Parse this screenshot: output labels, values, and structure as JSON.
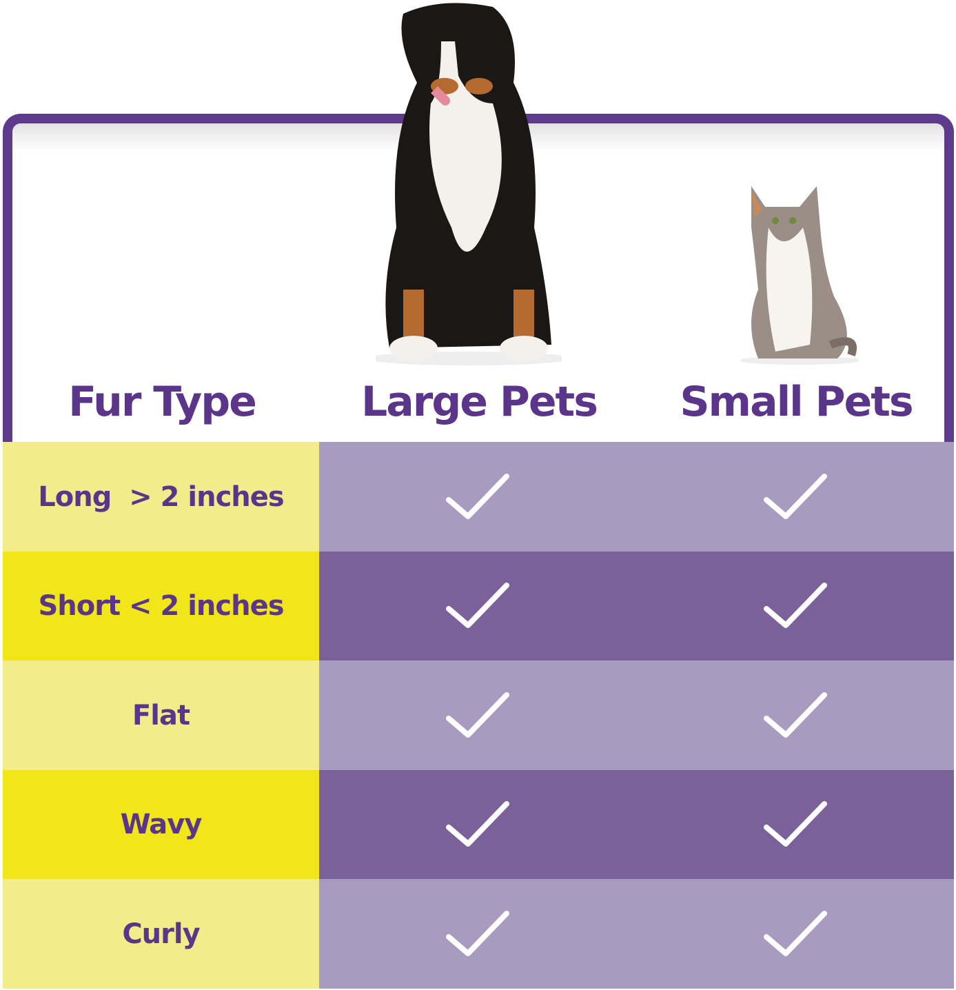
{
  "headers": {
    "fur_type": "Fur Type",
    "large": "Large Pets",
    "small": "Small Pets"
  },
  "colors": {
    "purple_text": "#5b3589",
    "border": "#5e3a8c",
    "yellow_light": "#f3ec8a",
    "yellow_dark": "#f1e619",
    "purple_light": "#a99abf",
    "purple_dark": "#7a6199",
    "check": "#ffffff"
  },
  "images": {
    "large": "dog-photo",
    "small": "cat-photo"
  },
  "rows": [
    {
      "label": "Long  > 2 inches",
      "large": true,
      "small": true
    },
    {
      "label": "Short < 2 inches",
      "large": true,
      "small": true
    },
    {
      "label": "Flat",
      "large": true,
      "small": true
    },
    {
      "label": "Wavy",
      "large": true,
      "small": true
    },
    {
      "label": "Curly",
      "large": true,
      "small": true
    }
  ]
}
